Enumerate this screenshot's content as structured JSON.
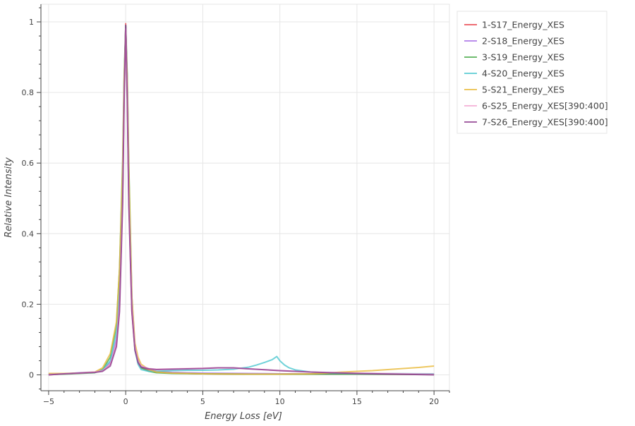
{
  "chart_data": {
    "type": "line",
    "title": "",
    "xlabel": "Energy Loss [eV]",
    "ylabel": "Relative Intensity",
    "xlim": [
      -5.5,
      21.0
    ],
    "ylim": [
      -0.045,
      1.05
    ],
    "x_ticks": [
      -5,
      0,
      5,
      10,
      15,
      20
    ],
    "x_tick_labels": [
      "−5",
      "0",
      "5",
      "10",
      "15",
      "20"
    ],
    "y_ticks": [
      0,
      0.2,
      0.4,
      0.6,
      0.8,
      1
    ],
    "y_tick_labels": [
      "0",
      "0.2",
      "0.4",
      "0.6",
      "0.8",
      "1"
    ],
    "grid": true,
    "legend_position": "outside-top-right",
    "series": [
      {
        "name": "1-S17_Energy_XES",
        "color": "#e8474f",
        "x": [
          -5,
          -4,
          -3,
          -2,
          -1.5,
          -1,
          -0.6,
          -0.4,
          -0.2,
          -0.1,
          0,
          0.1,
          0.2,
          0.4,
          0.6,
          0.8,
          1,
          1.5,
          2,
          3,
          5,
          8,
          10,
          12,
          15,
          20
        ],
        "y": [
          0.0,
          0.003,
          0.005,
          0.007,
          0.012,
          0.03,
          0.09,
          0.2,
          0.5,
          0.8,
          0.995,
          0.8,
          0.5,
          0.18,
          0.07,
          0.035,
          0.02,
          0.012,
          0.008,
          0.005,
          0.003,
          0.002,
          0.002,
          0.002,
          0.002,
          0.001
        ]
      },
      {
        "name": "2-S18_Energy_XES",
        "color": "#a971e6",
        "x": [
          -5,
          -4,
          -3,
          -2,
          -1.5,
          -1,
          -0.6,
          -0.4,
          -0.2,
          -0.1,
          0,
          0.1,
          0.2,
          0.4,
          0.6,
          0.8,
          1,
          1.5,
          2,
          3,
          5,
          8,
          10,
          12,
          15,
          20
        ],
        "y": [
          0.002,
          0.003,
          0.006,
          0.008,
          0.014,
          0.035,
          0.1,
          0.22,
          0.52,
          0.82,
          0.99,
          0.82,
          0.52,
          0.2,
          0.08,
          0.04,
          0.025,
          0.015,
          0.01,
          0.007,
          0.005,
          0.004,
          0.003,
          0.003,
          0.002,
          0.002
        ]
      },
      {
        "name": "3-S19_Energy_XES",
        "color": "#4aab4a",
        "x": [
          -5,
          -4,
          -3,
          -2,
          -1.5,
          -1,
          -0.6,
          -0.4,
          -0.2,
          -0.1,
          0,
          0.1,
          0.2,
          0.4,
          0.6,
          0.8,
          1,
          1.5,
          2,
          3,
          5,
          8,
          10,
          12,
          15,
          20
        ],
        "y": [
          0.001,
          0.002,
          0.004,
          0.006,
          0.015,
          0.05,
          0.14,
          0.3,
          0.6,
          0.85,
          0.99,
          0.85,
          0.6,
          0.22,
          0.08,
          0.04,
          0.02,
          0.01,
          0.006,
          0.004,
          0.003,
          0.002,
          0.002,
          0.002,
          0.002,
          0.001
        ]
      },
      {
        "name": "4-S20_Energy_XES",
        "color": "#4cc7cf",
        "x": [
          -5,
          -4,
          -3,
          -2,
          -1.5,
          -1,
          -0.6,
          -0.4,
          -0.2,
          -0.1,
          0,
          0.1,
          0.2,
          0.4,
          0.6,
          0.8,
          1,
          1.5,
          2,
          3,
          4,
          5,
          6,
          7,
          8,
          8.5,
          9,
          9.5,
          9.8,
          10,
          10.3,
          10.6,
          11,
          12,
          13,
          15,
          20
        ],
        "y": [
          0.002,
          0.003,
          0.005,
          0.007,
          0.013,
          0.04,
          0.12,
          0.26,
          0.55,
          0.84,
          0.97,
          0.84,
          0.55,
          0.2,
          0.07,
          0.03,
          0.015,
          0.01,
          0.01,
          0.012,
          0.013,
          0.013,
          0.014,
          0.016,
          0.022,
          0.028,
          0.035,
          0.043,
          0.052,
          0.04,
          0.028,
          0.02,
          0.014,
          0.008,
          0.006,
          0.004,
          0.003
        ]
      },
      {
        "name": "5-S21_Energy_XES",
        "color": "#e8b938",
        "x": [
          -5,
          -4,
          -3,
          -2,
          -1.5,
          -1,
          -0.6,
          -0.4,
          -0.2,
          -0.1,
          0,
          0.1,
          0.2,
          0.4,
          0.6,
          0.8,
          1,
          1.5,
          2,
          3,
          5,
          8,
          10,
          12,
          13,
          14,
          15,
          16,
          17,
          18,
          19,
          20
        ],
        "y": [
          0.004,
          0.004,
          0.005,
          0.008,
          0.02,
          0.06,
          0.15,
          0.3,
          0.58,
          0.84,
          0.97,
          0.84,
          0.58,
          0.22,
          0.09,
          0.05,
          0.03,
          0.015,
          0.008,
          0.005,
          0.003,
          0.002,
          0.002,
          0.003,
          0.005,
          0.008,
          0.01,
          0.012,
          0.015,
          0.018,
          0.021,
          0.025
        ]
      },
      {
        "name": "6-S25_Energy_XES[390:400]",
        "color": "#f3a8d2",
        "x": [
          -5,
          -4,
          -3,
          -2,
          -1.5,
          -1,
          -0.6,
          -0.4,
          -0.2,
          -0.1,
          0,
          0.1,
          0.2,
          0.4,
          0.6,
          0.8,
          1,
          1.5,
          2,
          3,
          4,
          5,
          6,
          7,
          8,
          10,
          12,
          15,
          20
        ],
        "y": [
          0.001,
          0.003,
          0.005,
          0.008,
          0.012,
          0.03,
          0.09,
          0.2,
          0.5,
          0.8,
          0.98,
          0.8,
          0.5,
          0.2,
          0.08,
          0.04,
          0.025,
          0.018,
          0.016,
          0.017,
          0.018,
          0.019,
          0.02,
          0.019,
          0.017,
          0.012,
          0.008,
          0.005,
          0.002
        ]
      },
      {
        "name": "7-S26_Energy_XES[390:400]",
        "color": "#8f3c8f",
        "x": [
          -5,
          -4,
          -3,
          -2,
          -1.5,
          -1,
          -0.6,
          -0.4,
          -0.2,
          -0.1,
          0,
          0.1,
          0.2,
          0.4,
          0.6,
          0.8,
          1,
          1.5,
          2,
          3,
          4,
          5,
          6,
          7,
          8,
          10,
          12,
          15,
          20
        ],
        "y": [
          0.0,
          0.003,
          0.005,
          0.007,
          0.01,
          0.025,
          0.08,
          0.18,
          0.48,
          0.78,
          0.99,
          0.78,
          0.48,
          0.18,
          0.07,
          0.035,
          0.022,
          0.017,
          0.015,
          0.016,
          0.017,
          0.018,
          0.02,
          0.02,
          0.017,
          0.012,
          0.008,
          0.004,
          0.0
        ]
      }
    ]
  }
}
